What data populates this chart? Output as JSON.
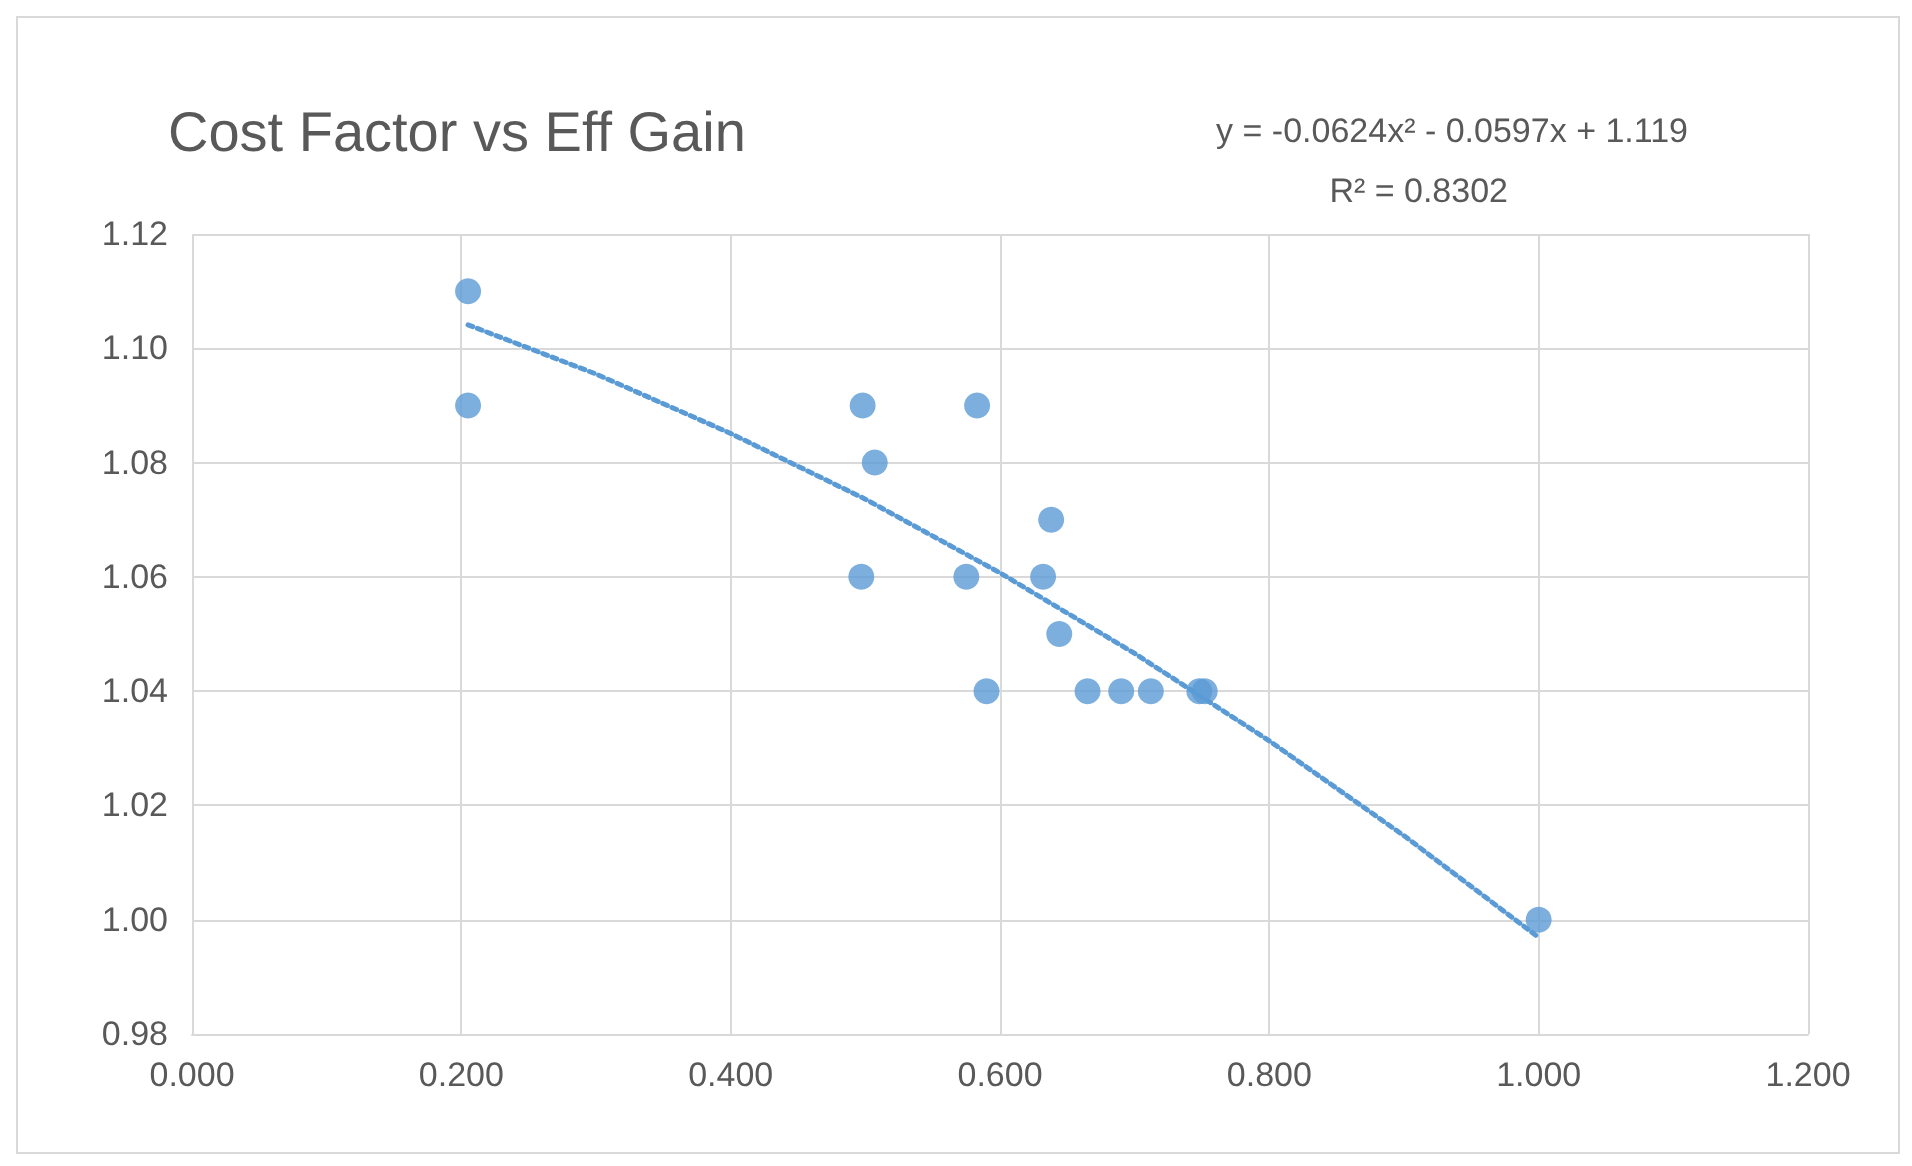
{
  "chart_data": {
    "type": "scatter",
    "title": "Cost Factor vs Eff Gain",
    "annotations": [
      "y = -0.0624x² - 0.0597x + 1.119",
      "R² = 0.8302"
    ],
    "series": [
      {
        "color": "#5b9bd5",
        "x": [
          0.205,
          0.205,
          0.498,
          0.583,
          0.507,
          0.638,
          0.497,
          0.575,
          0.632,
          0.644,
          0.59,
          0.665,
          0.69,
          0.712,
          0.748,
          0.752,
          1.0
        ],
        "values": [
          1.11,
          1.09,
          1.09,
          1.09,
          1.08,
          1.07,
          1.06,
          1.06,
          1.06,
          1.05,
          1.04,
          1.04,
          1.04,
          1.04,
          1.04,
          1.04,
          1.0
        ],
        "marker": "circle"
      },
      {
        "type": "line",
        "color": "#5b9bd5",
        "line_style": "dotted",
        "marker": "none",
        "x": [
          0.205,
          0.3,
          0.4,
          0.5,
          0.6,
          0.7,
          0.8,
          0.9,
          1.0
        ],
        "values": [
          1.1041,
          1.0955,
          1.0851,
          1.0736,
          1.0607,
          1.0466,
          1.0313,
          1.0147,
          0.9969
        ]
      }
    ],
    "xlim": [
      0,
      1.2
    ],
    "xticks": [
      {
        "value": 0,
        "label": "0.000"
      },
      {
        "value": 0.2,
        "label": "0.200"
      },
      {
        "value": 0.4,
        "label": "0.400"
      },
      {
        "value": 0.6,
        "label": "0.600"
      },
      {
        "value": 0.8,
        "label": "0.800"
      },
      {
        "value": 1.0,
        "label": "1.000"
      },
      {
        "value": 1.2,
        "label": "1.200"
      }
    ],
    "ylim": [
      0.98,
      1.12
    ],
    "yticks": [
      0.98,
      {
        "value": 1.0,
        "label": "1.00"
      },
      1.02,
      1.04,
      1.06,
      1.08,
      {
        "value": 1.1,
        "label": "1.10"
      },
      1.12
    ],
    "grid": true
  }
}
